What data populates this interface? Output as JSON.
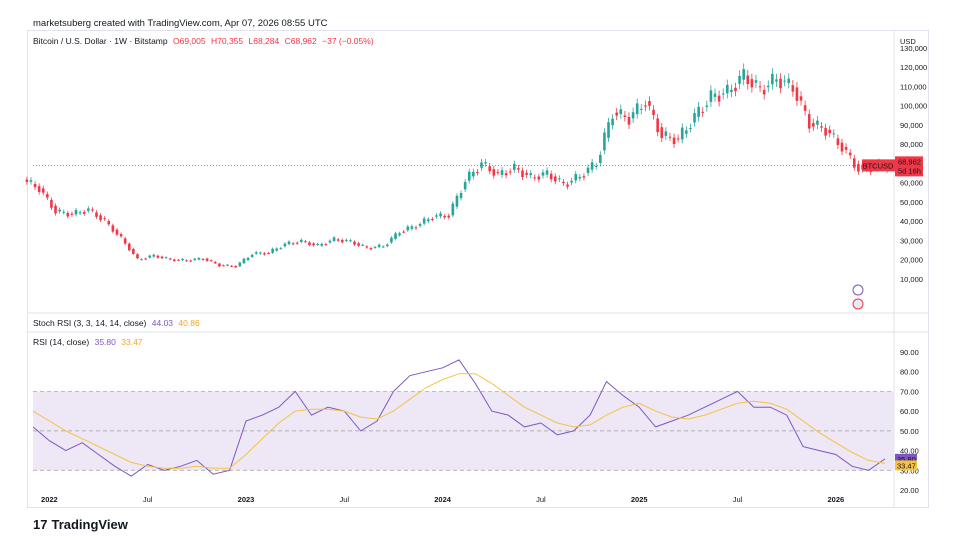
{
  "credit": "marketsuberg created with TradingView.com, Apr 07, 2026 08:55 UTC",
  "logo": "TradingView",
  "price_legend": {
    "symbol": "Bitcoin / U.S. Dollar · 1W · Bitstamp",
    "open": "O69,005",
    "high": "H70,355",
    "low": "L68,284",
    "close": "C68,962",
    "change": "−37 (−0.05%)"
  },
  "stoch_legend": {
    "name": "Stoch RSI (3, 3, 14, 14, close)",
    "k": "44.03",
    "d": "40.86"
  },
  "rsi_legend": {
    "name": "RSI (14, close)",
    "rsi": "35.80",
    "ma": "33.47"
  },
  "price_axis": {
    "currency": "USD",
    "ticks": [
      "130,000",
      "120,000",
      "110,000",
      "100,000",
      "90,000",
      "80,000",
      "70,000",
      "60,000",
      "50,000",
      "40,000",
      "30,000",
      "20,000",
      "10,000"
    ],
    "last_label": "BTCUSD",
    "last_price": "68,962",
    "countdown": "5d 16h"
  },
  "rsi_axis": {
    "ticks": [
      "90.00",
      "80.00",
      "70.00",
      "60.00",
      "50.00",
      "40.00",
      "30.00",
      "20.00"
    ],
    "rsi_label": "35.80",
    "ma_label": "33.47"
  },
  "time_axis": {
    "labels": [
      {
        "text": "2022",
        "bold": true
      },
      {
        "text": "Jul",
        "bold": false
      },
      {
        "text": "2023",
        "bold": true
      },
      {
        "text": "Jul",
        "bold": false
      },
      {
        "text": "2024",
        "bold": true
      },
      {
        "text": "Jul",
        "bold": false
      },
      {
        "text": "2025",
        "bold": true
      },
      {
        "text": "Jul",
        "bold": false
      },
      {
        "text": "2026",
        "bold": true
      }
    ]
  },
  "colors": {
    "up": "#26a69a",
    "down": "#f23645",
    "rsi": "#7e57c2",
    "rsi_ma": "#f5c342",
    "band": "#ede7f6"
  },
  "chart_data": [
    {
      "type": "candlestick",
      "title": "Bitcoin / U.S. Dollar · 1W · Bitstamp",
      "ylabel": "USD",
      "ylim": [
        0,
        130000
      ],
      "x_start": "2021-12",
      "x_end": "2026-04",
      "x": [
        "2021-12",
        "2022-01",
        "2022-02",
        "2022-03",
        "2022-04",
        "2022-05",
        "2022-06",
        "2022-07",
        "2022-08",
        "2022-09",
        "2022-10",
        "2022-11",
        "2022-12",
        "2023-01",
        "2023-02",
        "2023-03",
        "2023-04",
        "2023-05",
        "2023-06",
        "2023-07",
        "2023-08",
        "2023-09",
        "2023-10",
        "2023-11",
        "2023-12",
        "2024-01",
        "2024-02",
        "2024-03",
        "2024-04",
        "2024-05",
        "2024-06",
        "2024-07",
        "2024-08",
        "2024-09",
        "2024-10",
        "2024-11",
        "2024-12",
        "2025-01",
        "2025-02",
        "2025-03",
        "2025-04",
        "2025-05",
        "2025-06",
        "2025-07",
        "2025-08",
        "2025-09",
        "2025-10",
        "2025-11",
        "2025-12",
        "2026-01",
        "2026-02",
        "2026-03",
        "2026-04"
      ],
      "close": [
        57000,
        45000,
        43500,
        46000,
        40000,
        31000,
        20000,
        22000,
        20000,
        19500,
        20500,
        17000,
        16500,
        23000,
        23500,
        28000,
        29500,
        27200,
        30500,
        29300,
        26000,
        27000,
        34500,
        37500,
        42300,
        43000,
        61000,
        70000,
        64000,
        67500,
        62700,
        64600,
        59000,
        63300,
        70200,
        96400,
        93400,
        102400,
        84300,
        82500,
        94200,
        104600,
        107100,
        115700,
        108200,
        114000,
        109500,
        91000,
        87500,
        78500,
        66800,
        68200,
        68962
      ],
      "last_price": 68962
    },
    {
      "type": "line",
      "title": "RSI (14, close)",
      "ylim": [
        20,
        90
      ],
      "bands": [
        30,
        70
      ],
      "series": [
        {
          "name": "RSI (14, close)",
          "x_start": "2021-12",
          "x_end": "2026-04",
          "values": [
            52,
            45,
            40,
            44,
            38,
            32,
            27,
            33,
            30,
            32,
            35,
            28,
            30,
            55,
            58,
            62,
            70,
            58,
            62,
            60,
            50,
            55,
            70,
            78,
            80,
            82,
            86,
            74,
            60,
            58,
            52,
            54,
            48,
            50,
            58,
            75,
            68,
            62,
            52,
            55,
            58,
            62,
            66,
            70,
            62,
            62,
            58,
            42,
            40,
            38,
            32,
            30,
            35.8
          ]
        },
        {
          "name": "RSI MA",
          "x_start": "2021-12",
          "x_end": "2026-04",
          "values": [
            60,
            55,
            50,
            46,
            42,
            38,
            34,
            32,
            31,
            31,
            32,
            31,
            31,
            38,
            46,
            54,
            60,
            61,
            61,
            60,
            57,
            56,
            60,
            66,
            72,
            76,
            79,
            79,
            74,
            68,
            62,
            58,
            54,
            52,
            53,
            58,
            62,
            64,
            60,
            57,
            56,
            58,
            61,
            64,
            65,
            64,
            61,
            55,
            49,
            44,
            39,
            35,
            33.47
          ]
        }
      ]
    }
  ]
}
